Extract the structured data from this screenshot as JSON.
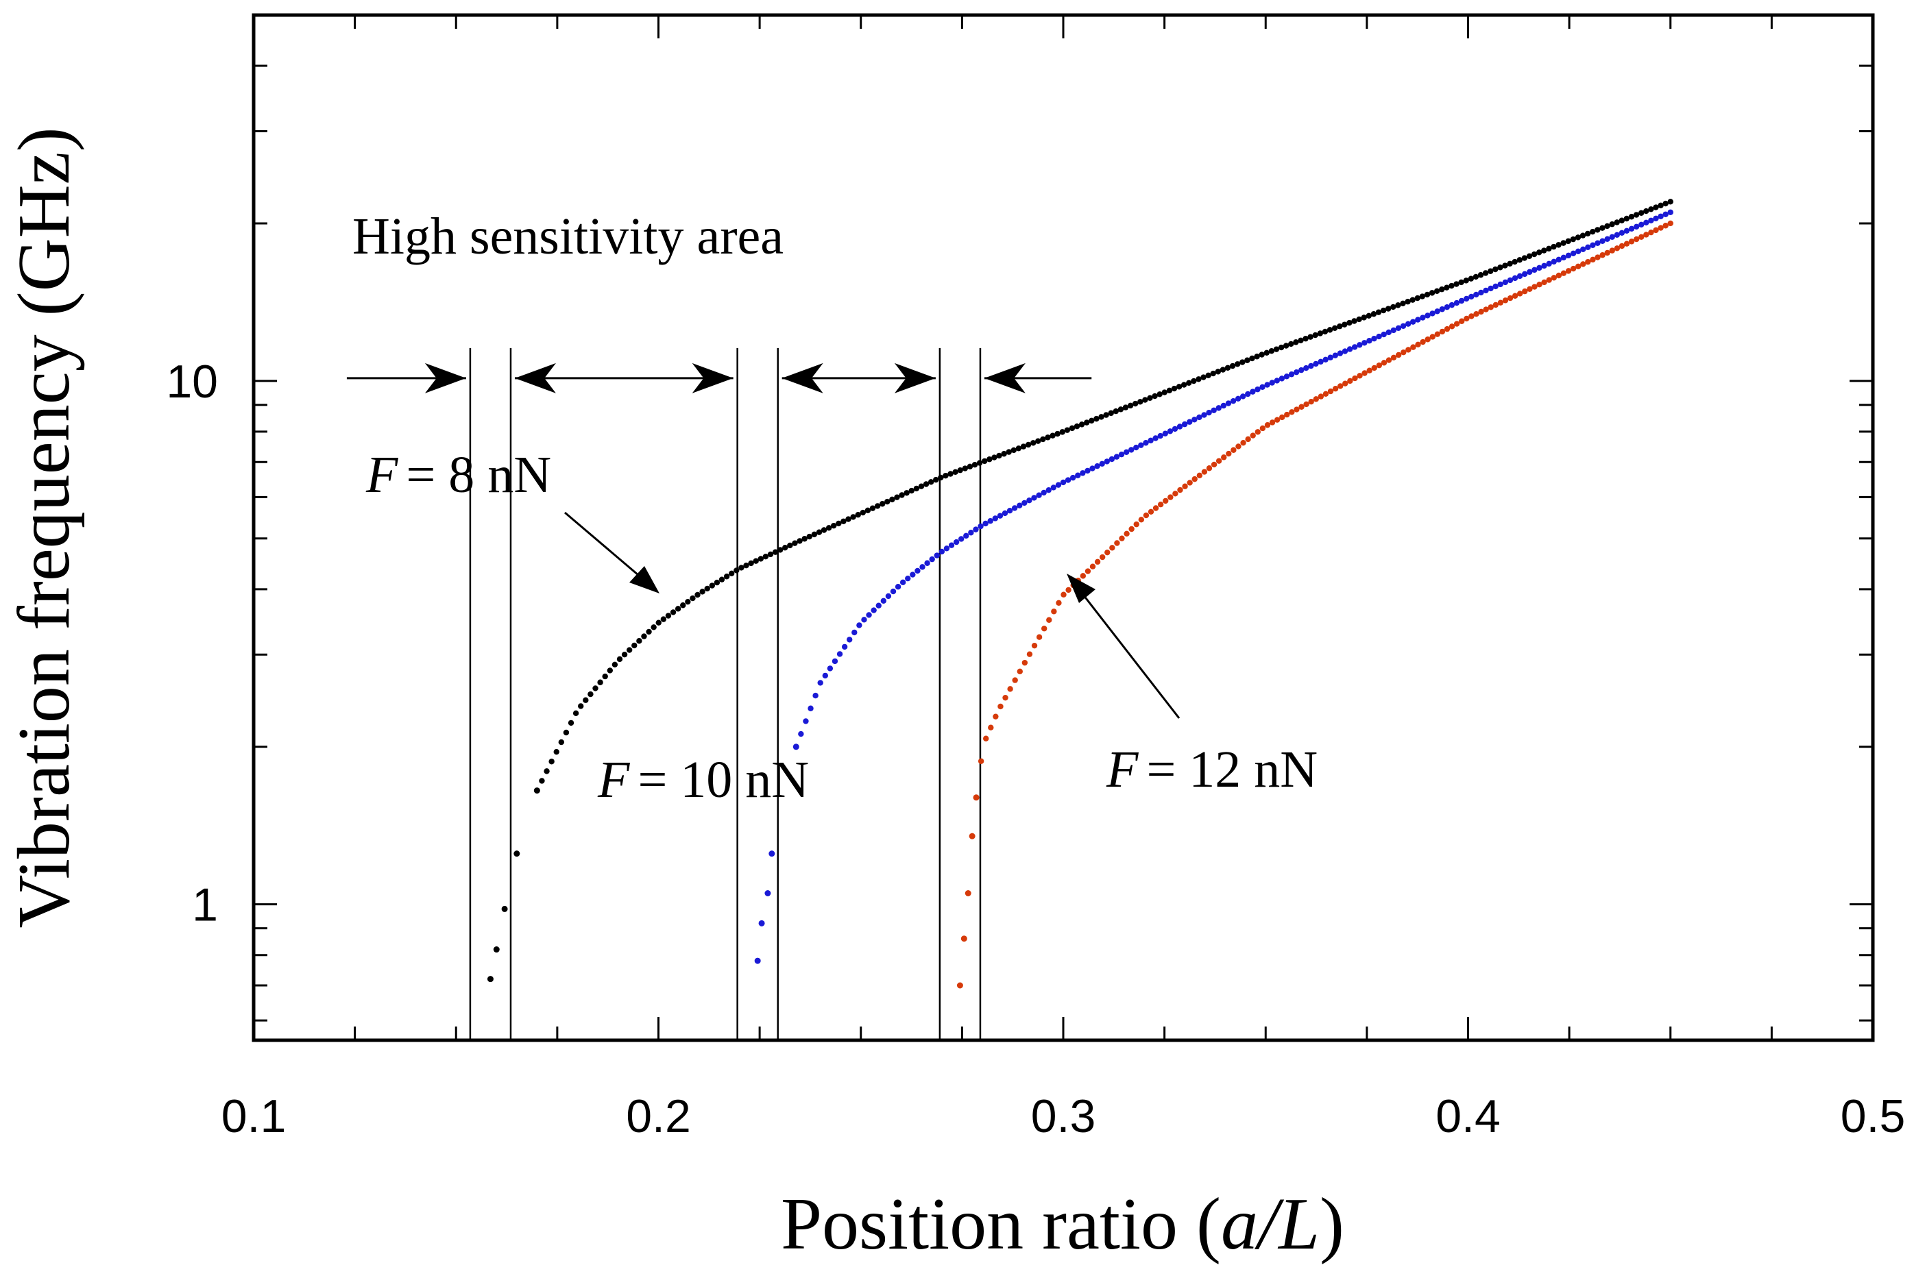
{
  "chart_data": {
    "type": "scatter",
    "title": "",
    "xlabel": "Position ratio",
    "xlabel_var": "a/L",
    "ylabel": "Vibration frequency (GHz)",
    "xscale": "linear",
    "yscale": "log",
    "xlim": [
      0.1,
      0.5
    ],
    "ylim": [
      0.55,
      50
    ],
    "x_ticks": [
      "0.1",
      "0.2",
      "0.3",
      "0.4",
      "0.5"
    ],
    "y_ticks": [
      "1",
      "10"
    ],
    "grid": false,
    "series": [
      {
        "name": "F = 8 nN",
        "force_symbol": "F",
        "force_value": "= 8 nN",
        "color": "#000000",
        "threshold": 0.1585,
        "x_end": 0.45,
        "points": [
          [
            0.1585,
            0.72
          ],
          [
            0.16,
            0.82
          ],
          [
            0.162,
            0.98
          ],
          [
            0.165,
            1.25
          ],
          [
            0.17,
            1.65
          ],
          [
            0.18,
            2.35
          ],
          [
            0.19,
            2.92
          ],
          [
            0.2,
            3.45
          ],
          [
            0.21,
            3.92
          ],
          [
            0.22,
            4.38
          ],
          [
            0.235,
            4.95
          ],
          [
            0.25,
            5.58
          ],
          [
            0.27,
            6.55
          ],
          [
            0.3,
            8.0
          ],
          [
            0.35,
            11.3
          ],
          [
            0.4,
            15.6
          ],
          [
            0.45,
            22.0
          ]
        ]
      },
      {
        "name": "F = 10 nN",
        "force_symbol": "F",
        "force_value": "= 10 nN",
        "color": "#1a1ad6",
        "threshold": 0.2245,
        "x_end": 0.45,
        "points": [
          [
            0.2245,
            0.78
          ],
          [
            0.2255,
            0.92
          ],
          [
            0.227,
            1.05
          ],
          [
            0.228,
            1.25
          ],
          [
            0.234,
            2.0
          ],
          [
            0.24,
            2.65
          ],
          [
            0.25,
            3.45
          ],
          [
            0.26,
            4.1
          ],
          [
            0.27,
            4.72
          ],
          [
            0.28,
            5.3
          ],
          [
            0.3,
            6.4
          ],
          [
            0.35,
            9.8
          ],
          [
            0.4,
            14.4
          ],
          [
            0.45,
            21.0
          ]
        ]
      },
      {
        "name": "F = 12 nN",
        "force_symbol": "F",
        "force_value": "= 12 nN",
        "color": "#d63a0a",
        "threshold": 0.2745,
        "x_end": 0.45,
        "points": [
          [
            0.2745,
            0.7
          ],
          [
            0.2755,
            0.86
          ],
          [
            0.2765,
            1.05
          ],
          [
            0.2775,
            1.35
          ],
          [
            0.2785,
            1.6
          ],
          [
            0.2795,
            1.8
          ],
          [
            0.28,
            2.0
          ],
          [
            0.284,
            2.35
          ],
          [
            0.29,
            2.85
          ],
          [
            0.3,
            3.9
          ],
          [
            0.32,
            5.5
          ],
          [
            0.35,
            8.2
          ],
          [
            0.4,
            13.2
          ],
          [
            0.45,
            20.0
          ]
        ]
      }
    ],
    "annotations": {
      "area_label": "High sensitivity area",
      "boundary_lines_x": [
        0.1535,
        0.1635,
        0.2195,
        0.2295,
        0.2695,
        0.2795
      ],
      "arrow_level_y": 10,
      "spans": [
        {
          "from": 0.122,
          "to": 0.1535,
          "kind": "right-arrow"
        },
        {
          "from": 0.1635,
          "to": 0.2195,
          "kind": "double-arrow"
        },
        {
          "from": 0.2295,
          "to": 0.2695,
          "kind": "double-arrow"
        },
        {
          "from": 0.2795,
          "to": 0.308,
          "kind": "left-arrow"
        }
      ]
    }
  }
}
